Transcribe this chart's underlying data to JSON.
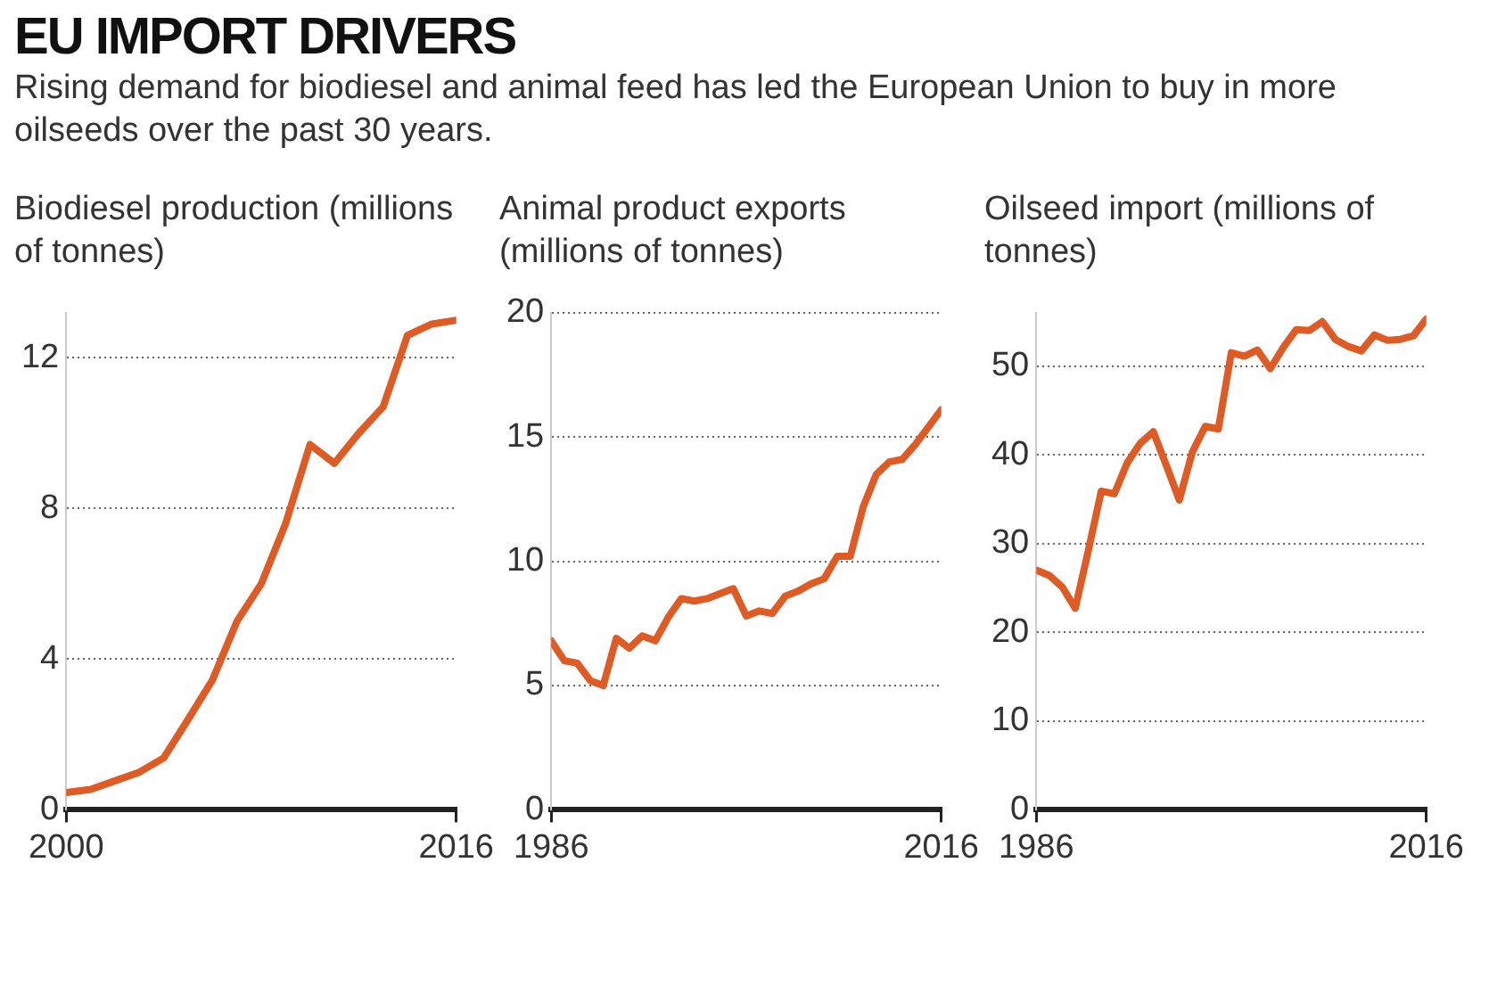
{
  "chart_data": [
    {
      "type": "line",
      "title": "EU IMPORT DRIVERS",
      "subtitle": "Rising demand for biodiesel and animal feed has led the European Union to buy in more oilseeds over the past 30 years.",
      "ylabel": "Biodiesel production (millions of tonnes)",
      "x": [
        2000,
        2001,
        2002,
        2003,
        2004,
        2005,
        2006,
        2007,
        2008,
        2009,
        2010,
        2011,
        2012,
        2013,
        2014,
        2015,
        2016
      ],
      "values": [
        0.46,
        0.54,
        0.77,
        1.0,
        1.38,
        2.4,
        3.45,
        5.0,
        6.0,
        7.6,
        9.7,
        9.2,
        10.0,
        10.7,
        12.6,
        12.9,
        13.0
      ],
      "color": "#e05a24",
      "xlim": [
        2000,
        2016
      ],
      "xticks": [
        2000,
        2016
      ],
      "ylim": [
        0,
        13.2
      ],
      "yticks": [
        0,
        4,
        8,
        12
      ],
      "grid": "y",
      "legend": false
    },
    {
      "type": "line",
      "ylabel": "Animal product exports (millions of tonnes)",
      "x": [
        1986,
        1987,
        1988,
        1989,
        1990,
        1991,
        1992,
        1993,
        1994,
        1995,
        1996,
        1997,
        1998,
        1999,
        2000,
        2001,
        2002,
        2003,
        2004,
        2005,
        2006,
        2007,
        2008,
        2009,
        2010,
        2011,
        2012,
        2013,
        2014,
        2015,
        2016
      ],
      "values": [
        6.8,
        6.0,
        5.9,
        5.2,
        5.0,
        6.9,
        6.5,
        7.0,
        6.8,
        7.75,
        8.5,
        8.4,
        8.5,
        8.7,
        8.9,
        7.8,
        8.0,
        7.9,
        8.6,
        8.8,
        9.1,
        9.3,
        10.2,
        10.2,
        12.2,
        13.5,
        14.0,
        14.1,
        14.7,
        15.4,
        16.1
      ],
      "color": "#e05a24",
      "xlim": [
        1986,
        2016
      ],
      "xticks": [
        1986,
        2016
      ],
      "ylim": [
        0,
        20
      ],
      "yticks": [
        0,
        5,
        10,
        15,
        20
      ],
      "grid": "y",
      "legend": false
    },
    {
      "type": "line",
      "ylabel": "Oilseed import (millions of tonnes)",
      "x": [
        1986,
        1987,
        1988,
        1989,
        1990,
        1991,
        1992,
        1993,
        1994,
        1995,
        1996,
        1997,
        1998,
        1999,
        2000,
        2001,
        2002,
        2003,
        2004,
        2005,
        2006,
        2007,
        2008,
        2009,
        2010,
        2011,
        2012,
        2013,
        2014,
        2015,
        2016
      ],
      "values": [
        27.0,
        26.4,
        25.1,
        22.7,
        29.2,
        35.9,
        35.6,
        39.1,
        41.3,
        42.6,
        38.8,
        34.9,
        40.3,
        43.2,
        42.9,
        51.5,
        51.1,
        51.8,
        49.7,
        52.1,
        54.1,
        54.0,
        55.0,
        53.0,
        52.2,
        51.7,
        53.5,
        52.9,
        53.0,
        53.4,
        55.3
      ],
      "color": "#e05a24",
      "xlim": [
        1986,
        2016
      ],
      "xticks": [
        1986,
        2016
      ],
      "ylim": [
        0,
        56
      ],
      "yticks": [
        0,
        10,
        20,
        30,
        40,
        50
      ],
      "grid": "y",
      "legend": false
    }
  ]
}
